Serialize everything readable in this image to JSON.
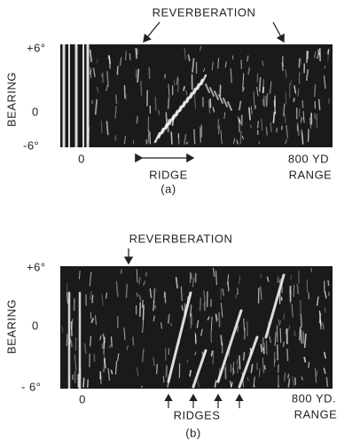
{
  "panels": [
    {
      "top_label": "REVERBERATION",
      "bearing_ticks": [
        "+6°",
        "0",
        "-6°"
      ],
      "bearing_label": "BEARING",
      "range_start": "0",
      "feature_label": "RIDGE",
      "range_end": "800 YD",
      "range_label": "RANGE",
      "caption": "(a)"
    },
    {
      "top_label": "REVERBERATION",
      "bearing_ticks": [
        "+6°",
        "0",
        "- 6°"
      ],
      "bearing_label": "BEARING",
      "range_start": "0",
      "feature_label": "RIDGES",
      "range_end": "800 YD.",
      "range_label": "RANGE",
      "caption": "(b)"
    }
  ]
}
